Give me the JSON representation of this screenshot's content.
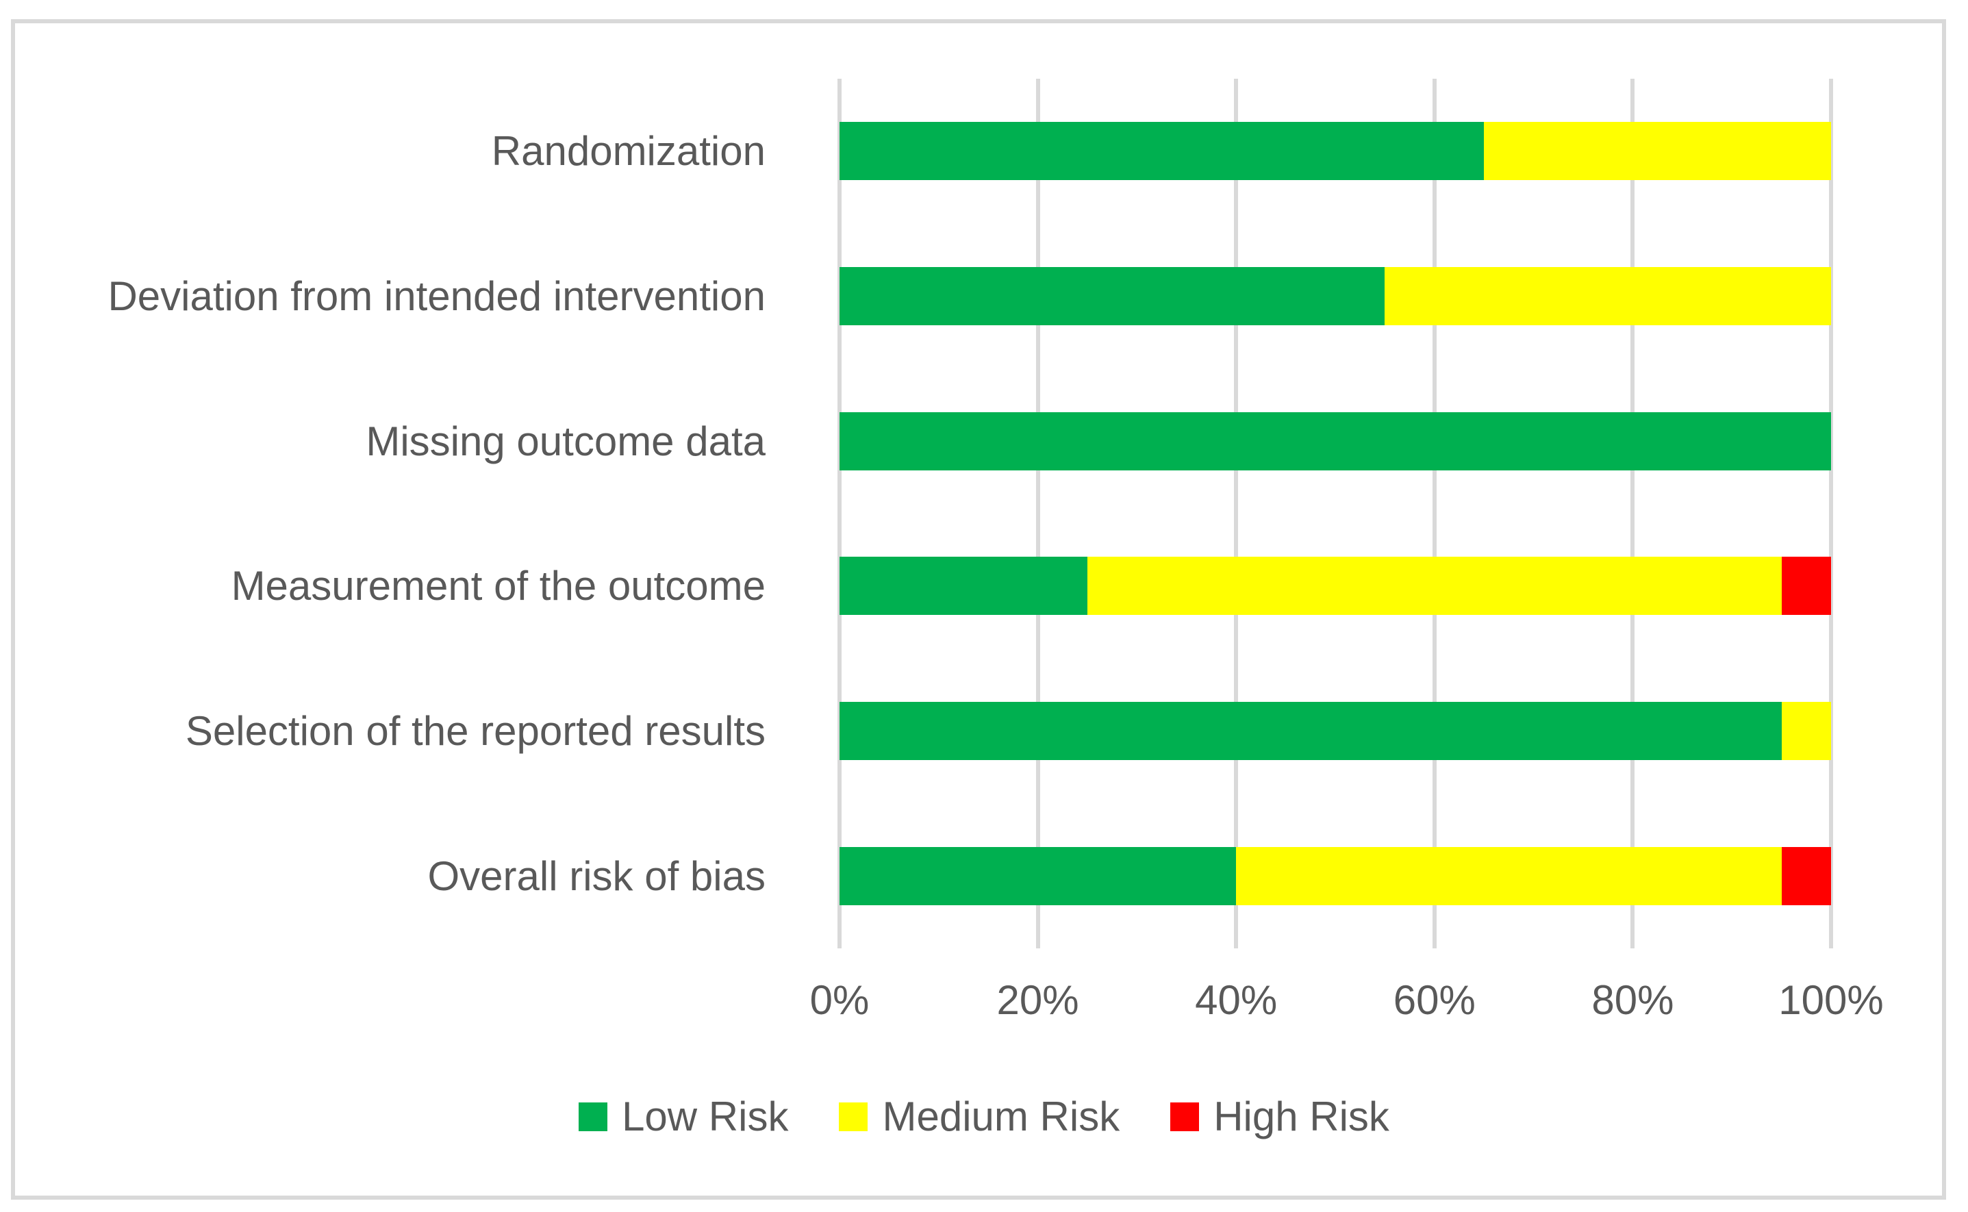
{
  "figure": {
    "background": "#FFFFFF",
    "border_color": "#D9D9D9",
    "text_color": "#595959",
    "gridline_color": "#D9D9D9"
  },
  "chart_data": {
    "type": "bar",
    "orientation": "horizontal",
    "stacked": true,
    "title": "",
    "xlabel": "",
    "ylabel": "",
    "categories": [
      "Randomization",
      "Deviation from intended intervention",
      "Missing outcome data",
      "Measurement of the outcome",
      "Selection of the reported results",
      "Overall risk of bias"
    ],
    "series": [
      {
        "name": "Low Risk",
        "color": "#00B050",
        "values": [
          65,
          55,
          100,
          25,
          95,
          40
        ]
      },
      {
        "name": "Medium Risk",
        "color": "#FFFF00",
        "values": [
          35,
          45,
          0,
          70,
          5,
          55
        ]
      },
      {
        "name": "High Risk",
        "color": "#FF0000",
        "values": [
          0,
          0,
          0,
          5,
          0,
          5
        ]
      }
    ],
    "x_axis": {
      "min": 0,
      "max": 100,
      "unit": "%",
      "tick_labels": [
        "0%",
        "20%",
        "40%",
        "60%",
        "80%",
        "100%"
      ]
    },
    "grid": true,
    "legend": {
      "position": "bottom",
      "entries": [
        "Low Risk",
        "Medium Risk",
        "High Risk"
      ]
    }
  }
}
